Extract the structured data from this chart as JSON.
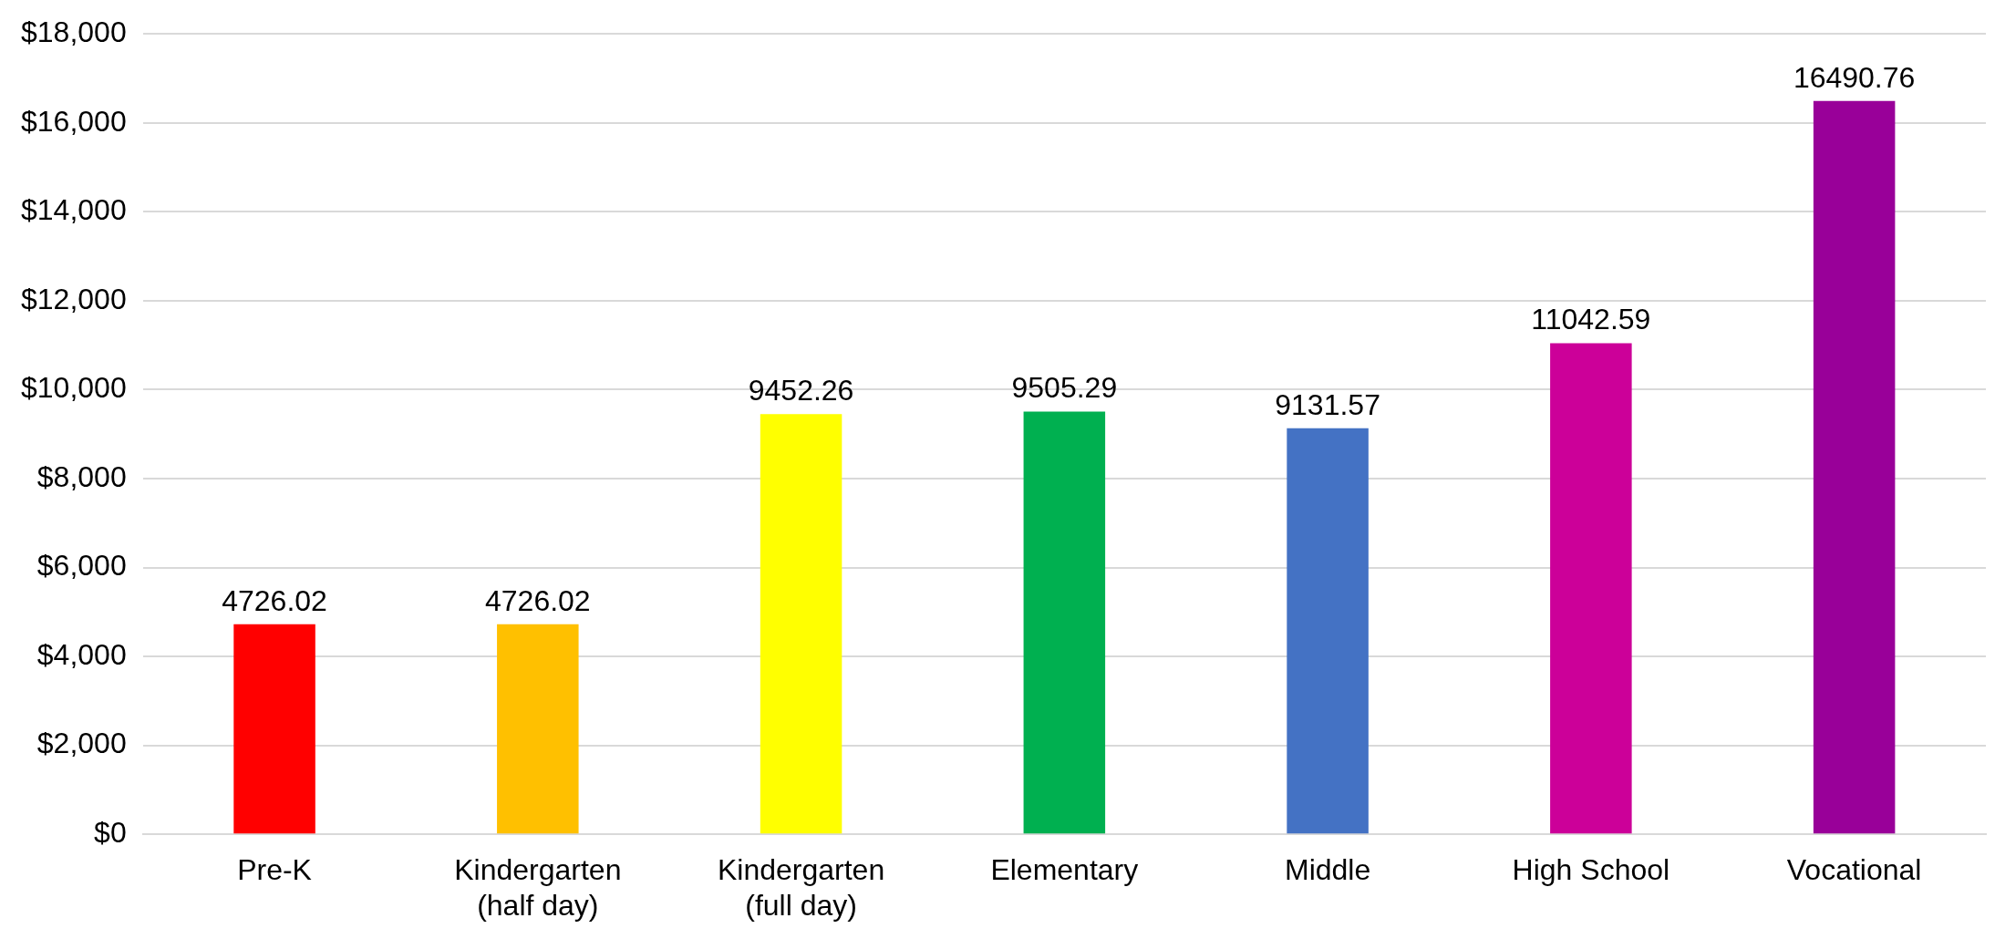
{
  "chart_data": {
    "type": "bar",
    "categories": [
      "Pre-K",
      "Kindergarten (half day)",
      "Kindergarten (full day)",
      "Elementary",
      "Middle",
      "High School",
      "Vocational"
    ],
    "values": [
      4726.02,
      4726.02,
      9452.26,
      9505.29,
      9131.57,
      11042.59,
      16490.76
    ],
    "colors": [
      "#ff0000",
      "#ffc000",
      "#ffff00",
      "#00b050",
      "#4472c4",
      "#cc0099",
      "#990099"
    ],
    "ylim": [
      0,
      18000
    ],
    "yticks": [
      {
        "value": 0,
        "label": "$0"
      },
      {
        "value": 2000,
        "label": "$2,000"
      },
      {
        "value": 4000,
        "label": "$4,000"
      },
      {
        "value": 6000,
        "label": "$6,000"
      },
      {
        "value": 8000,
        "label": "$8,000"
      },
      {
        "value": 10000,
        "label": "$10,000"
      },
      {
        "value": 12000,
        "label": "$12,000"
      },
      {
        "value": 14000,
        "label": "$14,000"
      },
      {
        "value": 16000,
        "label": "$16,000"
      },
      {
        "value": 18000,
        "label": "$18,000"
      }
    ],
    "grid": "y",
    "data_labels": true,
    "legend": false
  }
}
